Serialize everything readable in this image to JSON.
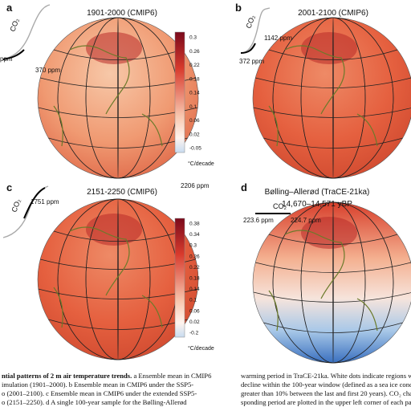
{
  "panels": [
    {
      "label": "a",
      "title": "1901-2000 (CMIP6)",
      "co2": {
        "label": "CO₂",
        "start": "ppm",
        "end": "370 ppm"
      },
      "colorbar": {
        "ticks": [
          "0.3",
          "0.26",
          "0.22",
          "0.18",
          "0.14",
          "0.1",
          "0.06",
          "0.02",
          "-0.05"
        ],
        "unit": "°C/decade"
      }
    },
    {
      "label": "b",
      "title": "2001-2100 (CMIP6)",
      "co2": {
        "label": "CO₂",
        "start": "372 ppm",
        "end": "1142 ppm"
      }
    },
    {
      "label": "c",
      "title": "2151-2250 (CMIP6)",
      "co2": {
        "label": "CO₂",
        "start": "1751 ppm",
        "end": "2206 ppm"
      },
      "colorbar": {
        "ticks": [
          "0.38",
          "0.34",
          "0.3",
          "0.26",
          "0.22",
          "0.18",
          "0.14",
          "0.1",
          "0.06",
          "0.02",
          "-0.2"
        ],
        "unit": "°C/decade"
      }
    },
    {
      "label": "d",
      "title": "Bølling–Allerød (TraCE-21ka)",
      "subtitle": "14,670–14,571 yBP",
      "co2": {
        "label": "CO₂",
        "start": "223.6 ppm",
        "end": "224.7 ppm"
      }
    }
  ],
  "caption": {
    "heading": "ntial patterns of 2 m air temperature trends.",
    "left": [
      " a Ensemble mean in CMIP6",
      "imulation (1901–2000). b Ensemble mean in CMIP6 under the SSP5-",
      "o (2001–2100). c Ensemble mean in CMIP6 under the extended SSP5-",
      "o (2151–2250). d A single 100-year sample for the Bølling-Allerød"
    ],
    "right": [
      "warming period in TraCE-21ka. White dots indicate regions with s",
      "decline within the 100-year window (defined as a sea ice concentrat",
      "greater than 10% between the last and first 20 years). CO₂ change",
      "sponding period are plotted in the upper left corner of each panel."
    ]
  }
}
